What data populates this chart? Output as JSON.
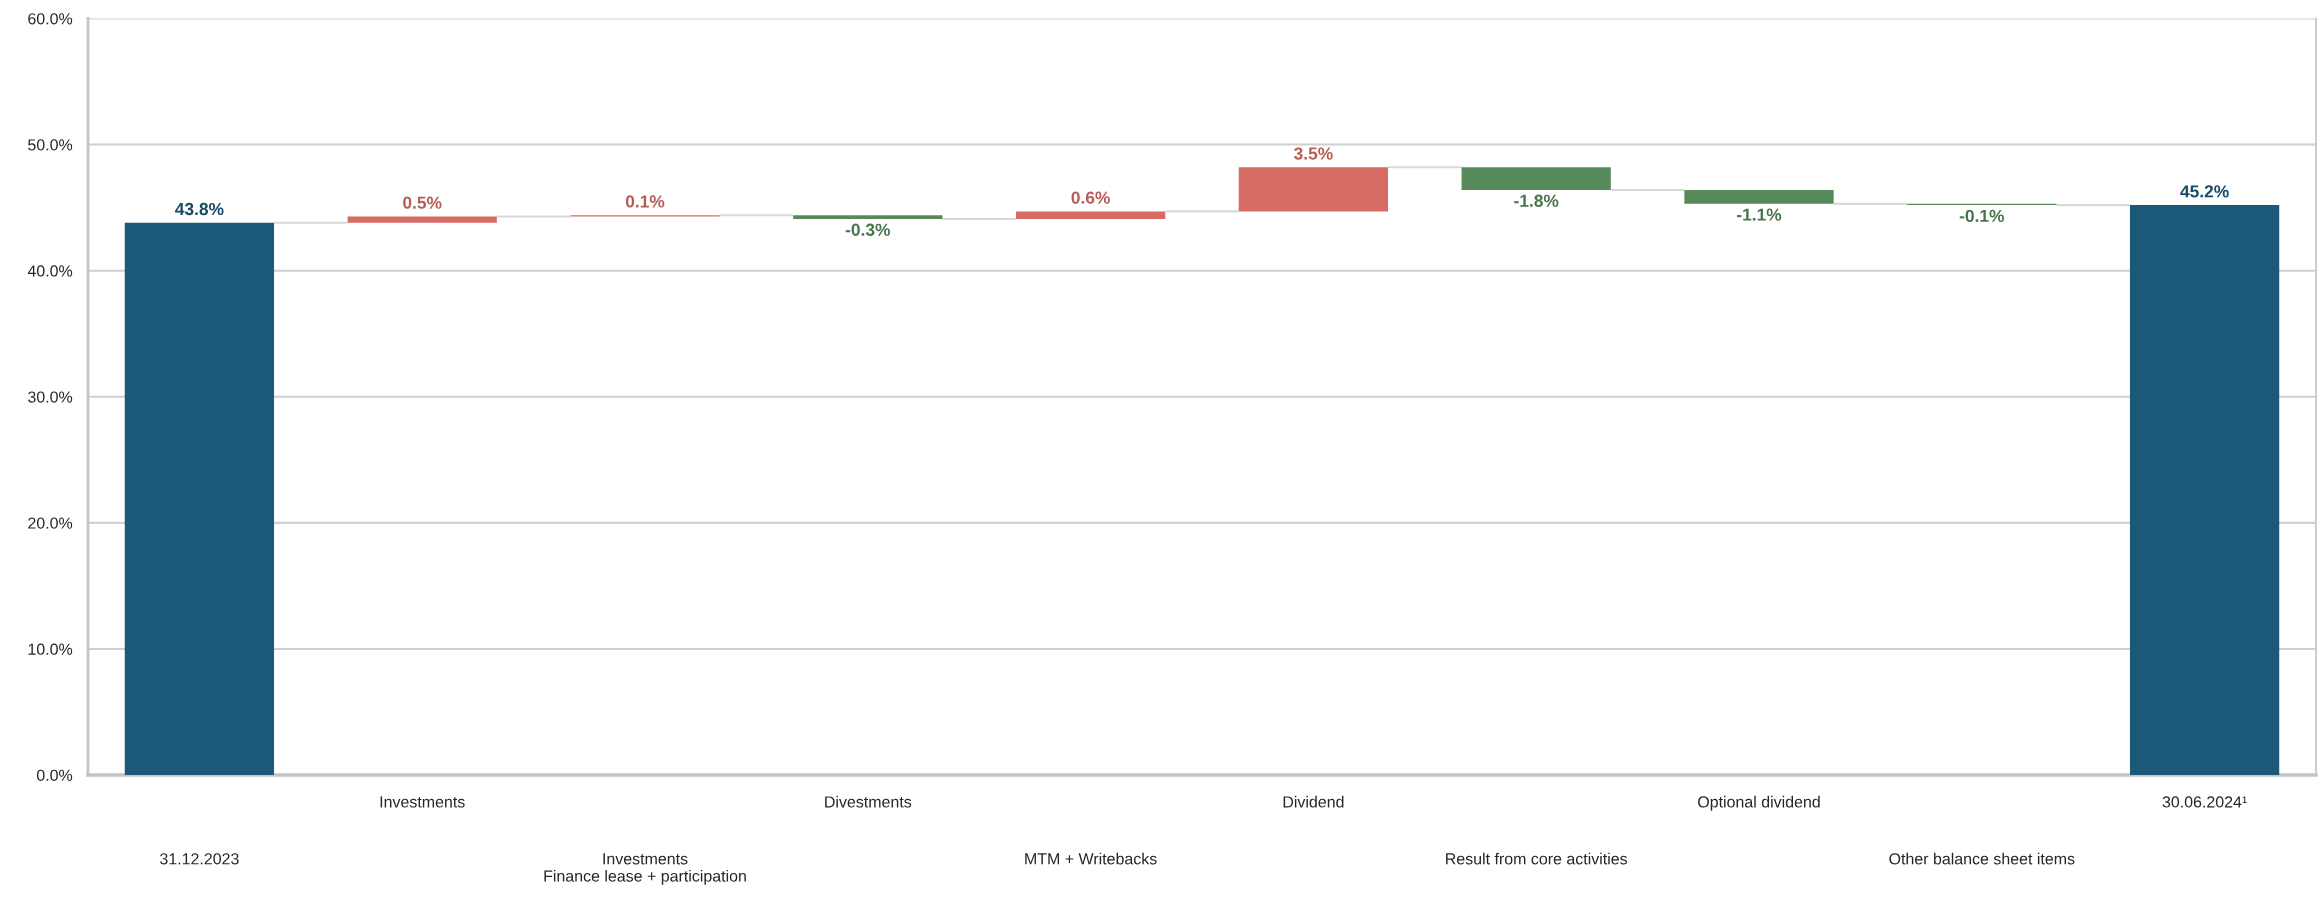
{
  "chart_data": {
    "type": "bar",
    "categories": [
      "31.12.2023",
      "Investments",
      "Investments\nFinance lease + participation",
      "Divestments",
      "MTM + Writebacks",
      "Dividend",
      "Result from core activities",
      "Optional dividend",
      "Other balance sheet items",
      "30.06.2024¹"
    ],
    "values": [
      43.8,
      0.5,
      0.1,
      -0.3,
      0.6,
      3.5,
      -1.8,
      -1.1,
      -0.1,
      45.2
    ],
    "base": [
      0,
      43.8,
      44.3,
      44.4,
      44.1,
      44.7,
      48.2,
      46.4,
      45.3,
      0
    ],
    "colors": [
      "#1c5878",
      "#d66b64",
      "#d66b64",
      "#568a5a",
      "#d66b64",
      "#d66b64",
      "#568a5a",
      "#568a5a",
      "#568a5a",
      "#1c5878"
    ],
    "value_labels": [
      "43.8%",
      "0.5%",
      "0.1%",
      "-0.3%",
      "0.6%",
      "3.5%",
      "-1.8%",
      "-1.1%",
      "-0.1%",
      "45.2%"
    ],
    "ylim": [
      0,
      60
    ],
    "yticks": [
      {
        "value": 0,
        "label": "0.0%"
      },
      {
        "value": 10,
        "label": "10.0%"
      },
      {
        "value": 20,
        "label": "20.0%"
      },
      {
        "value": 30,
        "label": "30.0%"
      },
      {
        "value": 40,
        "label": "40.0%"
      },
      {
        "value": 50,
        "label": "50.0%"
      },
      {
        "value": 60,
        "label": "60.0%"
      }
    ],
    "grid": "y"
  }
}
